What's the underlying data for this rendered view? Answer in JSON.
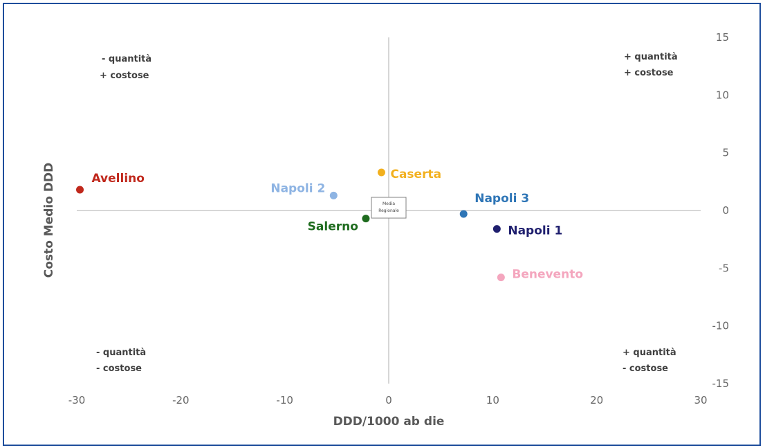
{
  "chart_data": {
    "type": "scatter",
    "title": "",
    "xlabel": "DDD/1000 ab die",
    "ylabel": "Costo Medio DDD",
    "xlim": [
      -30,
      30
    ],
    "ylim": [
      -15,
      15
    ],
    "x_ticks": [
      "-30",
      "-20",
      "-10",
      "0",
      "10",
      "20",
      "30"
    ],
    "y_ticks": [
      "15",
      "10",
      "5",
      "0",
      "-5",
      "-10",
      "-15"
    ],
    "grid": false,
    "points": [
      {
        "name": "Avellino",
        "x": -29.7,
        "y": 1.8,
        "color": "#c0281c"
      },
      {
        "name": "Napoli 2",
        "x": -5.3,
        "y": 1.3,
        "color": "#8eb4e3"
      },
      {
        "name": "Caserta",
        "x": -0.7,
        "y": 3.3,
        "color": "#f2b01e"
      },
      {
        "name": "Salerno",
        "x": -2.2,
        "y": -0.7,
        "color": "#1e6b1e"
      },
      {
        "name": "Napoli 3",
        "x": 7.2,
        "y": -0.3,
        "color": "#2e75b6"
      },
      {
        "name": "Napoli 1",
        "x": 10.4,
        "y": -1.6,
        "color": "#1f1f6e"
      },
      {
        "name": "Benevento",
        "x": 10.8,
        "y": -5.8,
        "color": "#f4a6be"
      }
    ],
    "center_label": [
      "Media",
      "Regionale"
    ],
    "quadrants": {
      "top_left": [
        "- quantità",
        "+ costose"
      ],
      "top_right": [
        "+ quantità",
        "+ costose"
      ],
      "bottom_left": [
        "- quantità",
        "- costose"
      ],
      "bottom_right": [
        "+ quantità",
        "- costose"
      ]
    }
  }
}
